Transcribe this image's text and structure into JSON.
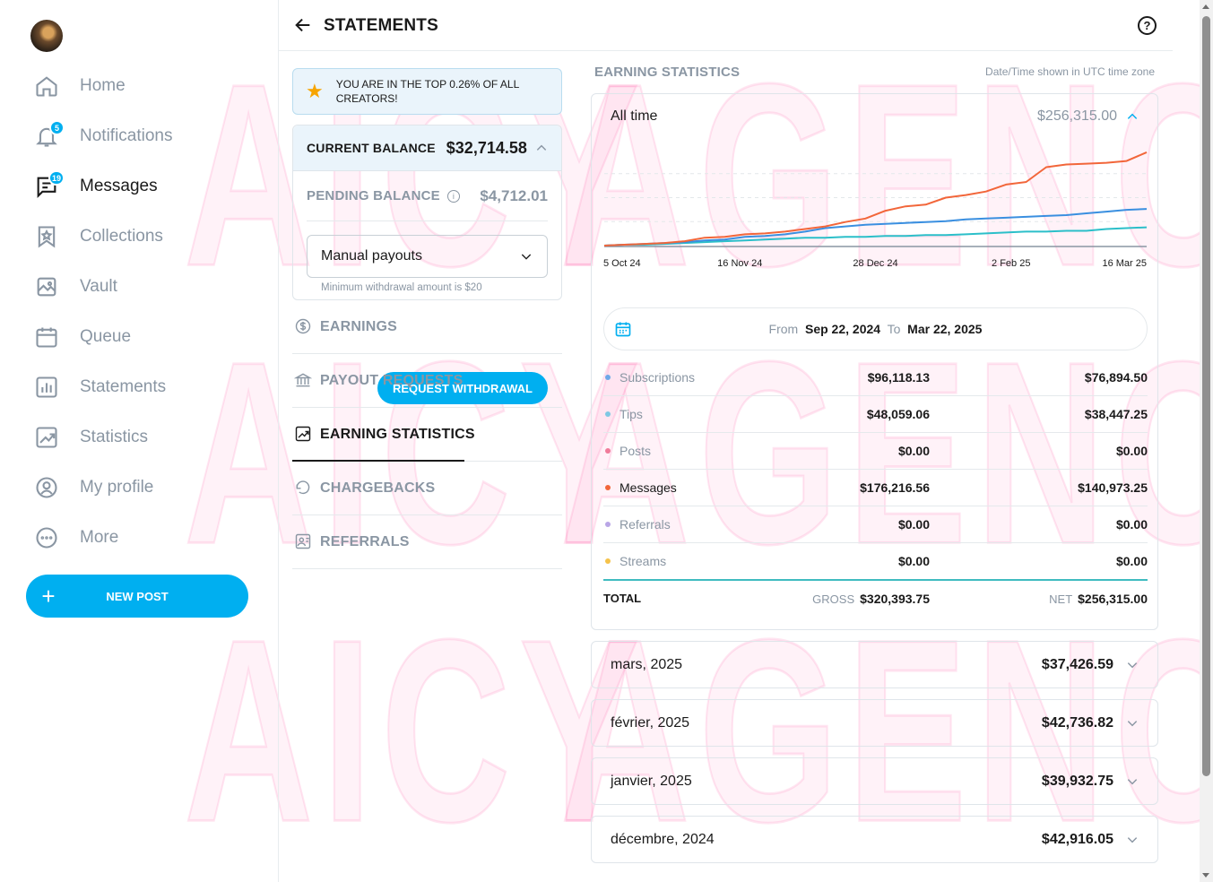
{
  "sidebar": {
    "items": [
      {
        "label": "Home",
        "icon": "home-icon",
        "active": false
      },
      {
        "label": "Notifications",
        "icon": "bell-icon",
        "badge": "5",
        "active": false
      },
      {
        "label": "Messages",
        "icon": "message-icon",
        "badge": "19",
        "active": true
      },
      {
        "label": "Collections",
        "icon": "collections-icon",
        "active": false
      },
      {
        "label": "Vault",
        "icon": "vault-icon",
        "active": false
      },
      {
        "label": "Queue",
        "icon": "calendar-icon",
        "active": false
      },
      {
        "label": "Statements",
        "icon": "statements-icon",
        "active": false
      },
      {
        "label": "Statistics",
        "icon": "statistics-icon",
        "active": false
      },
      {
        "label": "My profile",
        "icon": "profile-icon",
        "active": false
      },
      {
        "label": "More",
        "icon": "more-icon",
        "active": false
      }
    ],
    "new_post": "NEW POST"
  },
  "header": {
    "title": "STATEMENTS",
    "help": "?"
  },
  "left_panel": {
    "banner": "YOU ARE IN THE TOP 0.26% OF ALL CREATORS!",
    "current_balance_label": "CURRENT BALANCE",
    "current_balance": "$32,714.58",
    "pending_label": "PENDING BALANCE",
    "pending_balance": "$4,712.01",
    "payout_method": "Manual payouts",
    "min_note": "Minimum withdrawal amount is $20",
    "request_button": "REQUEST WITHDRAWAL",
    "menu": [
      {
        "label": "EARNINGS",
        "icon": "dollar-icon",
        "active": false
      },
      {
        "label": "PAYOUT REQUESTS",
        "icon": "bank-icon",
        "active": false
      },
      {
        "label": "EARNING STATISTICS",
        "icon": "chart-icon",
        "active": true
      },
      {
        "label": "CHARGEBACKS",
        "icon": "undo-icon",
        "active": false
      },
      {
        "label": "REFERRALS",
        "icon": "referral-icon",
        "active": false
      }
    ]
  },
  "right_panel": {
    "title": "EARNING STATISTICS",
    "timezone_note": "Date/Time shown in UTC time zone",
    "period_label": "All time",
    "period_total": "$256,315.00",
    "date_from_label": "From",
    "date_from": "Sep 22, 2024",
    "date_to_label": "To",
    "date_to": "Mar 22, 2025",
    "rows": [
      {
        "name": "Subscriptions",
        "gross": "$96,118.13",
        "net": "$76,894.50",
        "color": "#6ea8e8",
        "highlight": false
      },
      {
        "name": "Tips",
        "gross": "$48,059.06",
        "net": "$38,447.25",
        "color": "#7ec8e3",
        "highlight": false
      },
      {
        "name": "Posts",
        "gross": "$0.00",
        "net": "$0.00",
        "color": "#f07b9a",
        "highlight": false
      },
      {
        "name": "Messages",
        "gross": "$176,216.56",
        "net": "$140,973.25",
        "color": "#f2663a",
        "highlight": true
      },
      {
        "name": "Referrals",
        "gross": "$0.00",
        "net": "$0.00",
        "color": "#b9a6e6",
        "highlight": false
      },
      {
        "name": "Streams",
        "gross": "$0.00",
        "net": "$0.00",
        "color": "#f5c24a",
        "highlight": false
      }
    ],
    "total_label": "TOTAL",
    "gross_tag": "GROSS",
    "gross_total": "$320,393.75",
    "net_tag": "NET",
    "net_total": "$256,315.00",
    "months": [
      {
        "label": "mars, 2025",
        "value": "$37,426.59"
      },
      {
        "label": "février, 2025",
        "value": "$42,736.82"
      },
      {
        "label": "janvier, 2025",
        "value": "$39,932.75"
      },
      {
        "label": "décembre, 2024",
        "value": "$42,916.05"
      }
    ]
  },
  "chart_data": {
    "type": "line",
    "x_tick_labels": [
      "5 Oct 24",
      "16 Nov 24",
      "28 Dec 24",
      "2 Feb 25",
      "16 Mar 25"
    ],
    "series": [
      {
        "color": "#f2663a",
        "values": [
          0,
          1,
          2,
          3,
          5,
          9,
          10,
          13,
          14,
          16,
          19,
          22,
          27,
          31,
          40,
          45,
          47,
          55,
          58,
          62,
          70,
          73,
          90,
          93,
          94,
          95,
          97,
          107
        ]
      },
      {
        "color": "#3a8fe0",
        "values": [
          0,
          1,
          2,
          3,
          4,
          6,
          7,
          10,
          11,
          13,
          16,
          20,
          22,
          24,
          25,
          26,
          27,
          28,
          30,
          31,
          32,
          33,
          34,
          35,
          37,
          39,
          41,
          42
        ]
      },
      {
        "color": "#2bbfc9",
        "values": [
          0,
          1,
          1,
          2,
          3,
          4,
          5,
          6,
          7,
          8,
          9,
          9,
          10,
          10,
          11,
          11,
          12,
          12,
          13,
          14,
          15,
          16,
          16,
          17,
          17,
          19,
          20,
          21
        ]
      }
    ]
  },
  "watermark": [
    "AICY",
    "AGENCY"
  ]
}
